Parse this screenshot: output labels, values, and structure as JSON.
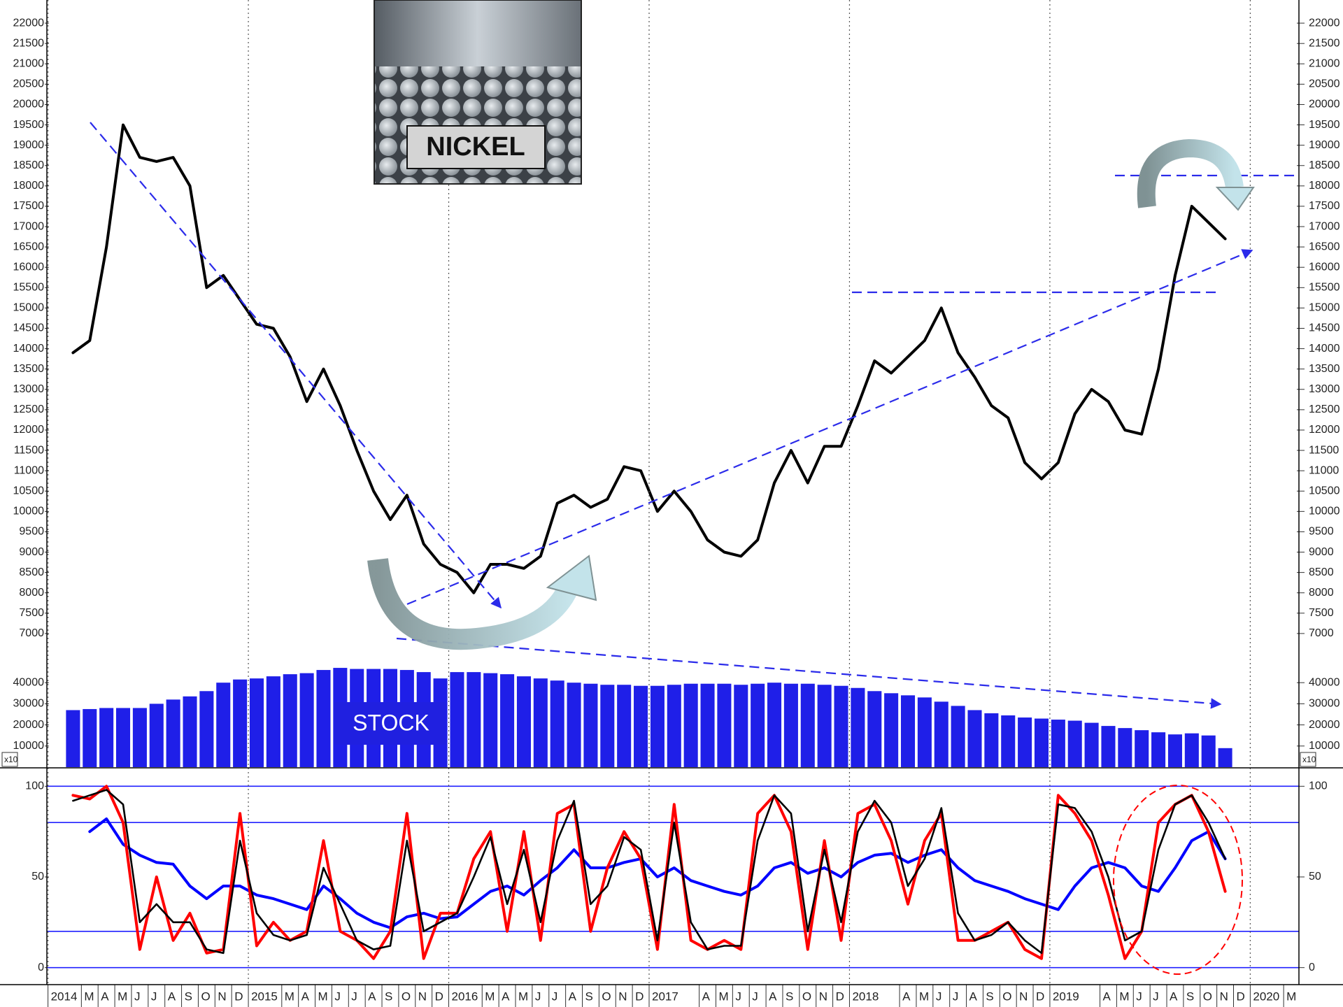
{
  "chart_data": [
    {
      "type": "line",
      "x": [
        "2014-02",
        "2014-03",
        "2014-04",
        "2014-05",
        "2014-06",
        "2014-07",
        "2014-08",
        "2014-09",
        "2014-10",
        "2014-11",
        "2014-12",
        "2015-01",
        "2015-02",
        "2015-03",
        "2015-04",
        "2015-05",
        "2015-06",
        "2015-07",
        "2015-08",
        "2015-09",
        "2015-10",
        "2015-11",
        "2015-12",
        "2016-01",
        "2016-02",
        "2016-03",
        "2016-04",
        "2016-05",
        "2016-06",
        "2016-07",
        "2016-08",
        "2016-09",
        "2016-10",
        "2016-11",
        "2016-12",
        "2017-01",
        "2017-02",
        "2017-03",
        "2017-04",
        "2017-05",
        "2017-06",
        "2017-07",
        "2017-08",
        "2017-09",
        "2017-10",
        "2017-11",
        "2017-12",
        "2018-01",
        "2018-02",
        "2018-03",
        "2018-04",
        "2018-05",
        "2018-06",
        "2018-07",
        "2018-08",
        "2018-09",
        "2018-10",
        "2018-11",
        "2018-12",
        "2019-01",
        "2019-02",
        "2019-03",
        "2019-04",
        "2019-05",
        "2019-06",
        "2019-07",
        "2019-08",
        "2019-09",
        "2019-10",
        "2019-11"
      ],
      "values": [
        13900,
        14200,
        16500,
        19500,
        18700,
        18600,
        18700,
        18000,
        15500,
        15800,
        15200,
        14600,
        14500,
        13800,
        12700,
        13500,
        12600,
        11500,
        10500,
        9800,
        10400,
        9200,
        8700,
        8500,
        8000,
        8700,
        8700,
        8600,
        8900,
        10200,
        10400,
        10100,
        10300,
        11100,
        11000,
        10000,
        10500,
        10000,
        9300,
        9000,
        8900,
        9300,
        10700,
        11500,
        10700,
        11600,
        11600,
        12600,
        13700,
        13400,
        13800,
        14200,
        15000,
        13900,
        13300,
        12600,
        12300,
        11200,
        10800,
        11200,
        12400,
        13000,
        12700,
        12000,
        11900,
        13500,
        15800,
        17500,
        17100,
        16700
      ],
      "color": "#000000",
      "xlim": [
        "2014-01",
        "2020-04"
      ],
      "ylim": [
        6500,
        22500
      ],
      "yticks": [
        7000,
        7500,
        8000,
        8500,
        9000,
        9500,
        10000,
        10500,
        11000,
        11500,
        12000,
        12500,
        13000,
        13500,
        14000,
        14500,
        15000,
        15500,
        16000,
        16500,
        17000,
        17500,
        18000,
        18500,
        19000,
        19500,
        20000,
        20500,
        21000,
        21500,
        22000
      ],
      "annotation": "NICKEL"
    },
    {
      "type": "bar",
      "x": [
        "2014-02",
        "2014-03",
        "2014-04",
        "2014-05",
        "2014-06",
        "2014-07",
        "2014-08",
        "2014-09",
        "2014-10",
        "2014-11",
        "2014-12",
        "2015-01",
        "2015-02",
        "2015-03",
        "2015-04",
        "2015-05",
        "2015-06",
        "2015-07",
        "2015-08",
        "2015-09",
        "2015-10",
        "2015-11",
        "2015-12",
        "2016-01",
        "2016-02",
        "2016-03",
        "2016-04",
        "2016-05",
        "2016-06",
        "2016-07",
        "2016-08",
        "2016-09",
        "2016-10",
        "2016-11",
        "2016-12",
        "2017-01",
        "2017-02",
        "2017-03",
        "2017-04",
        "2017-05",
        "2017-06",
        "2017-07",
        "2017-08",
        "2017-09",
        "2017-10",
        "2017-11",
        "2017-12",
        "2018-01",
        "2018-02",
        "2018-03",
        "2018-04",
        "2018-05",
        "2018-06",
        "2018-07",
        "2018-08",
        "2018-09",
        "2018-10",
        "2018-11",
        "2018-12",
        "2019-01",
        "2019-02",
        "2019-03",
        "2019-04",
        "2019-05",
        "2019-06",
        "2019-07",
        "2019-08",
        "2019-09",
        "2019-10",
        "2019-11"
      ],
      "values": [
        27000,
        27500,
        28000,
        28000,
        28000,
        30000,
        32000,
        33500,
        36000,
        40000,
        41500,
        42000,
        43000,
        44000,
        44500,
        46000,
        47000,
        46500,
        46500,
        46500,
        46000,
        45000,
        42000,
        45000,
        45000,
        44500,
        44000,
        43000,
        42000,
        41000,
        40000,
        39500,
        39000,
        39000,
        38500,
        38500,
        39000,
        39500,
        39500,
        39500,
        39000,
        39500,
        40000,
        39500,
        39500,
        39000,
        38500,
        37500,
        36000,
        35000,
        34000,
        33000,
        31000,
        29000,
        27000,
        25500,
        24500,
        23500,
        23000,
        22500,
        22000,
        21000,
        19500,
        18500,
        17500,
        16500,
        15500,
        16000,
        15000,
        9000
      ],
      "color": "#1f1fe8",
      "xlim": [
        "2014-01",
        "2020-04"
      ],
      "ylim": [
        0,
        50000
      ],
      "yticks": [
        10000,
        20000,
        30000,
        40000
      ],
      "unit_label": "x10",
      "annotation": "STOCK"
    },
    {
      "type": "line",
      "x": [
        "2014-02",
        "2014-03",
        "2014-04",
        "2014-05",
        "2014-06",
        "2014-07",
        "2014-08",
        "2014-09",
        "2014-10",
        "2014-11",
        "2014-12",
        "2015-01",
        "2015-02",
        "2015-03",
        "2015-04",
        "2015-05",
        "2015-06",
        "2015-07",
        "2015-08",
        "2015-09",
        "2015-10",
        "2015-11",
        "2015-12",
        "2016-01",
        "2016-02",
        "2016-03",
        "2016-04",
        "2016-05",
        "2016-06",
        "2016-07",
        "2016-08",
        "2016-09",
        "2016-10",
        "2016-11",
        "2016-12",
        "2017-01",
        "2017-02",
        "2017-03",
        "2017-04",
        "2017-05",
        "2017-06",
        "2017-07",
        "2017-08",
        "2017-09",
        "2017-10",
        "2017-11",
        "2017-12",
        "2018-01",
        "2018-02",
        "2018-03",
        "2018-04",
        "2018-05",
        "2018-06",
        "2018-07",
        "2018-08",
        "2018-09",
        "2018-10",
        "2018-11",
        "2018-12",
        "2019-01",
        "2019-02",
        "2019-03",
        "2019-04",
        "2019-05",
        "2019-06",
        "2019-07",
        "2019-08",
        "2019-09",
        "2019-10",
        "2019-11"
      ],
      "series": [
        {
          "color": "#0000ff",
          "values": [
            null,
            75,
            82,
            68,
            62,
            58,
            57,
            45,
            38,
            45,
            45,
            40,
            38,
            35,
            32,
            45,
            38,
            30,
            25,
            22,
            28,
            30,
            27,
            28,
            35,
            42,
            45,
            40,
            48,
            55,
            65,
            55,
            55,
            58,
            60,
            50,
            55,
            48,
            45,
            42,
            40,
            45,
            55,
            58,
            52,
            55,
            50,
            58,
            62,
            63,
            58,
            62,
            65,
            55,
            48,
            45,
            42,
            38,
            35,
            32,
            45,
            55,
            58,
            55,
            45,
            42,
            55,
            70,
            75,
            60
          ]
        },
        {
          "color": "#ff0000",
          "values": [
            95,
            93,
            100,
            80,
            10,
            50,
            15,
            30,
            8,
            10,
            85,
            12,
            25,
            15,
            20,
            70,
            20,
            15,
            5,
            20,
            85,
            5,
            30,
            30,
            60,
            75,
            20,
            75,
            15,
            85,
            90,
            20,
            55,
            75,
            60,
            10,
            90,
            15,
            10,
            15,
            10,
            85,
            95,
            75,
            10,
            70,
            15,
            85,
            90,
            70,
            35,
            70,
            85,
            15,
            15,
            20,
            25,
            10,
            5,
            95,
            85,
            70,
            40,
            5,
            20,
            80,
            90,
            95,
            75,
            42
          ]
        },
        {
          "color": "#000000",
          "values": [
            92,
            95,
            98,
            90,
            25,
            35,
            25,
            25,
            10,
            8,
            70,
            30,
            18,
            15,
            18,
            55,
            35,
            15,
            10,
            12,
            70,
            20,
            25,
            30,
            50,
            72,
            35,
            65,
            25,
            70,
            92,
            35,
            45,
            72,
            65,
            15,
            80,
            25,
            10,
            12,
            12,
            70,
            95,
            85,
            20,
            65,
            25,
            75,
            92,
            80,
            45,
            60,
            88,
            30,
            15,
            18,
            25,
            15,
            8,
            90,
            88,
            75,
            50,
            15,
            20,
            65,
            90,
            95,
            80,
            60
          ]
        }
      ],
      "xlim": [
        "2014-01",
        "2020-04"
      ],
      "ylim": [
        -9,
        109
      ],
      "yticks": [
        0,
        50,
        100
      ],
      "hlines": [
        0,
        20,
        80,
        100
      ],
      "xticks": [
        {
          "value": "2014-01",
          "label": "2014"
        },
        {
          "value": "2014-03",
          "label": "M"
        },
        {
          "value": "2014-04",
          "label": "A"
        },
        {
          "value": "2014-05",
          "label": "M"
        },
        {
          "value": "2014-06",
          "label": "J"
        },
        {
          "value": "2014-07",
          "label": "J"
        },
        {
          "value": "2014-08",
          "label": "A"
        },
        {
          "value": "2014-09",
          "label": "S"
        },
        {
          "value": "2014-10",
          "label": "O"
        },
        {
          "value": "2014-11",
          "label": "N"
        },
        {
          "value": "2014-12",
          "label": "D"
        },
        {
          "value": "2015-01",
          "label": "2015"
        },
        {
          "value": "2015-03",
          "label": "M"
        },
        {
          "value": "2015-04",
          "label": "A"
        },
        {
          "value": "2015-05",
          "label": "M"
        },
        {
          "value": "2015-06",
          "label": "J"
        },
        {
          "value": "2015-07",
          "label": "J"
        },
        {
          "value": "2015-08",
          "label": "A"
        },
        {
          "value": "2015-09",
          "label": "S"
        },
        {
          "value": "2015-10",
          "label": "O"
        },
        {
          "value": "2015-11",
          "label": "N"
        },
        {
          "value": "2015-12",
          "label": "D"
        },
        {
          "value": "2016-01",
          "label": "2016"
        },
        {
          "value": "2016-03",
          "label": "M"
        },
        {
          "value": "2016-04",
          "label": "A"
        },
        {
          "value": "2016-05",
          "label": "M"
        },
        {
          "value": "2016-06",
          "label": "J"
        },
        {
          "value": "2016-07",
          "label": "J"
        },
        {
          "value": "2016-08",
          "label": "A"
        },
        {
          "value": "2016-09",
          "label": "S"
        },
        {
          "value": "2016-10",
          "label": "O"
        },
        {
          "value": "2016-11",
          "label": "N"
        },
        {
          "value": "2016-12",
          "label": "D"
        },
        {
          "value": "2017-01",
          "label": "2017"
        },
        {
          "value": "2017-04",
          "label": "A"
        },
        {
          "value": "2017-05",
          "label": "M"
        },
        {
          "value": "2017-06",
          "label": "J"
        },
        {
          "value": "2017-07",
          "label": "J"
        },
        {
          "value": "2017-08",
          "label": "A"
        },
        {
          "value": "2017-09",
          "label": "S"
        },
        {
          "value": "2017-10",
          "label": "O"
        },
        {
          "value": "2017-11",
          "label": "N"
        },
        {
          "value": "2017-12",
          "label": "D"
        },
        {
          "value": "2018-01",
          "label": "2018"
        },
        {
          "value": "2018-04",
          "label": "A"
        },
        {
          "value": "2018-05",
          "label": "M"
        },
        {
          "value": "2018-06",
          "label": "J"
        },
        {
          "value": "2018-07",
          "label": "J"
        },
        {
          "value": "2018-08",
          "label": "A"
        },
        {
          "value": "2018-09",
          "label": "S"
        },
        {
          "value": "2018-10",
          "label": "O"
        },
        {
          "value": "2018-11",
          "label": "N"
        },
        {
          "value": "2018-12",
          "label": "D"
        },
        {
          "value": "2019-01",
          "label": "2019"
        },
        {
          "value": "2019-04",
          "label": "A"
        },
        {
          "value": "2019-05",
          "label": "M"
        },
        {
          "value": "2019-06",
          "label": "J"
        },
        {
          "value": "2019-07",
          "label": "J"
        },
        {
          "value": "2019-08",
          "label": "A"
        },
        {
          "value": "2019-09",
          "label": "S"
        },
        {
          "value": "2019-10",
          "label": "O"
        },
        {
          "value": "2019-11",
          "label": "N"
        },
        {
          "value": "2019-12",
          "label": "D"
        },
        {
          "value": "2020-01",
          "label": "2020"
        },
        {
          "value": "2020-03",
          "label": "M"
        }
      ]
    }
  ]
}
